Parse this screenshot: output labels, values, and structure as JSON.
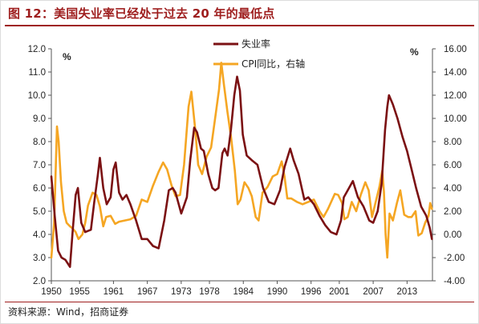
{
  "figure": {
    "title": "图 12：美国失业率已经处于过去 20 年的最低点",
    "source": "资料来源：Wind，招商证券"
  },
  "colors": {
    "unemployment": "#7b1113",
    "cpi": "#f5a623",
    "title": "#9e1e1e"
  },
  "chart_data": {
    "type": "line",
    "title": "",
    "left_unit": "%",
    "right_unit": "%",
    "xlim": [
      1950,
      2017.5
    ],
    "x_ticks": [
      1950,
      1955,
      1961,
      1967,
      1973,
      1978,
      1984,
      1990,
      1996,
      2001,
      2007,
      2013
    ],
    "y_left": {
      "lim": [
        2.0,
        12.0
      ],
      "ticks": [
        2.0,
        3.0,
        4.0,
        5.0,
        6.0,
        7.0,
        8.0,
        9.0,
        10.0,
        11.0,
        12.0
      ],
      "labels": [
        "2.0",
        "3.0",
        "4.0",
        "5.0",
        "6.0",
        "7.0",
        "8.0",
        "9.0",
        "10.0",
        "11.0",
        "12.0"
      ]
    },
    "y_right": {
      "lim": [
        -4.0,
        16.0
      ],
      "ticks": [
        -4,
        -2,
        0,
        2,
        4,
        6,
        8,
        10,
        12,
        14,
        16
      ],
      "labels": [
        "-4.00",
        "-2.00",
        "0.00",
        "2.00",
        "4.00",
        "6.00",
        "8.00",
        "10.00",
        "12.00",
        "14.00",
        "16.00"
      ]
    },
    "grid": false,
    "legend_position": "top-center",
    "series": [
      {
        "name": "失业率",
        "axis": "left",
        "points": [
          [
            1950,
            6.5
          ],
          [
            1950.6,
            4.8
          ],
          [
            1951.2,
            3.3
          ],
          [
            1951.8,
            3.0
          ],
          [
            1952.5,
            2.9
          ],
          [
            1953.3,
            2.6
          ],
          [
            1953.8,
            4.2
          ],
          [
            1954.3,
            5.7
          ],
          [
            1954.7,
            6.0
          ],
          [
            1955.3,
            4.5
          ],
          [
            1956,
            4.1
          ],
          [
            1957,
            4.2
          ],
          [
            1957.6,
            5.4
          ],
          [
            1958.2,
            6.5
          ],
          [
            1958.6,
            7.3
          ],
          [
            1959.2,
            6.0
          ],
          [
            1959.8,
            5.3
          ],
          [
            1960.5,
            5.6
          ],
          [
            1961,
            6.8
          ],
          [
            1961.4,
            7.1
          ],
          [
            1962,
            5.8
          ],
          [
            1962.6,
            5.5
          ],
          [
            1963.3,
            5.7
          ],
          [
            1964,
            5.3
          ],
          [
            1965,
            4.6
          ],
          [
            1966,
            3.8
          ],
          [
            1967,
            3.8
          ],
          [
            1968,
            3.5
          ],
          [
            1969,
            3.4
          ],
          [
            1970,
            4.6
          ],
          [
            1970.8,
            5.9
          ],
          [
            1971.5,
            6.0
          ],
          [
            1972,
            5.8
          ],
          [
            1973,
            4.9
          ],
          [
            1974,
            5.6
          ],
          [
            1974.6,
            7.2
          ],
          [
            1975.3,
            8.6
          ],
          [
            1975.8,
            8.4
          ],
          [
            1976.5,
            7.7
          ],
          [
            1977,
            7.6
          ],
          [
            1977.8,
            6.6
          ],
          [
            1978.5,
            6.0
          ],
          [
            1979,
            5.9
          ],
          [
            1979.6,
            6.0
          ],
          [
            1980.3,
            7.5
          ],
          [
            1980.7,
            7.7
          ],
          [
            1981.2,
            7.4
          ],
          [
            1981.8,
            8.5
          ],
          [
            1982.4,
            10.0
          ],
          [
            1982.9,
            10.8
          ],
          [
            1983.4,
            10.2
          ],
          [
            1983.9,
            8.3
          ],
          [
            1984.6,
            7.4
          ],
          [
            1985.5,
            7.2
          ],
          [
            1986.5,
            7.0
          ],
          [
            1987.5,
            6.0
          ],
          [
            1988.5,
            5.4
          ],
          [
            1989.5,
            5.3
          ],
          [
            1990.5,
            5.9
          ],
          [
            1991.3,
            6.9
          ],
          [
            1992.3,
            7.7
          ],
          [
            1992.9,
            7.2
          ],
          [
            1993.8,
            6.6
          ],
          [
            1994.8,
            5.5
          ],
          [
            1995.5,
            5.6
          ],
          [
            1996.5,
            5.3
          ],
          [
            1997.5,
            4.8
          ],
          [
            1998.5,
            4.4
          ],
          [
            1999.5,
            4.1
          ],
          [
            2000.5,
            4.0
          ],
          [
            2001.3,
            4.6
          ],
          [
            2001.8,
            5.6
          ],
          [
            2002.5,
            5.9
          ],
          [
            2003.4,
            6.3
          ],
          [
            2004.3,
            5.6
          ],
          [
            2005.3,
            5.2
          ],
          [
            2006.3,
            4.6
          ],
          [
            2007,
            4.5
          ],
          [
            2007.8,
            5.0
          ],
          [
            2008.5,
            6.2
          ],
          [
            2009.1,
            8.5
          ],
          [
            2009.5,
            9.5
          ],
          [
            2009.8,
            10.0
          ],
          [
            2010.5,
            9.6
          ],
          [
            2011.3,
            9.0
          ],
          [
            2012.2,
            8.2
          ],
          [
            2013,
            7.6
          ],
          [
            2013.8,
            6.8
          ],
          [
            2014.6,
            6.0
          ],
          [
            2015.5,
            5.2
          ],
          [
            2016.4,
            4.8
          ],
          [
            2017,
            4.3
          ],
          [
            2017.4,
            3.8
          ]
        ]
      },
      {
        "name": "CPI同比，右轴",
        "axis": "right",
        "points": [
          [
            1950,
            -2.0
          ],
          [
            1950.5,
            1.0
          ],
          [
            1950.8,
            6.0
          ],
          [
            1951,
            9.3
          ],
          [
            1951.3,
            8.0
          ],
          [
            1951.7,
            4.5
          ],
          [
            1952.2,
            2.0
          ],
          [
            1952.7,
            1.0
          ],
          [
            1953.3,
            0.7
          ],
          [
            1953.8,
            0.5
          ],
          [
            1954.3,
            0.2
          ],
          [
            1954.8,
            -0.4
          ],
          [
            1955.5,
            0.0
          ],
          [
            1956,
            1.0
          ],
          [
            1956.5,
            2.5
          ],
          [
            1957.3,
            3.6
          ],
          [
            1958,
            3.4
          ],
          [
            1958.6,
            2.4
          ],
          [
            1959.2,
            0.7
          ],
          [
            1959.7,
            1.5
          ],
          [
            1960.5,
            1.6
          ],
          [
            1961.3,
            0.9
          ],
          [
            1962,
            1.1
          ],
          [
            1963,
            1.2
          ],
          [
            1964,
            1.3
          ],
          [
            1965,
            1.6
          ],
          [
            1966,
            3.0
          ],
          [
            1967,
            2.8
          ],
          [
            1968,
            4.2
          ],
          [
            1969,
            5.4
          ],
          [
            1969.8,
            6.2
          ],
          [
            1970.5,
            5.6
          ],
          [
            1971.3,
            4.2
          ],
          [
            1972,
            3.3
          ],
          [
            1972.8,
            3.4
          ],
          [
            1973.5,
            6.0
          ],
          [
            1974.3,
            11.0
          ],
          [
            1974.8,
            12.3
          ],
          [
            1975.5,
            9.0
          ],
          [
            1976,
            6.0
          ],
          [
            1976.7,
            5.2
          ],
          [
            1977.5,
            6.7
          ],
          [
            1978.3,
            7.5
          ],
          [
            1979,
            10.0
          ],
          [
            1979.7,
            12.5
          ],
          [
            1980.1,
            14.8
          ],
          [
            1980.6,
            12.8
          ],
          [
            1981.2,
            10.5
          ],
          [
            1981.8,
            8.5
          ],
          [
            1982.5,
            5.5
          ],
          [
            1983,
            2.6
          ],
          [
            1983.5,
            3.0
          ],
          [
            1984.2,
            4.5
          ],
          [
            1984.9,
            4.0
          ],
          [
            1985.5,
            3.3
          ],
          [
            1986.2,
            1.5
          ],
          [
            1986.7,
            1.2
          ],
          [
            1987.4,
            3.6
          ],
          [
            1988.3,
            4.1
          ],
          [
            1989.2,
            5.0
          ],
          [
            1990,
            5.2
          ],
          [
            1990.8,
            6.3
          ],
          [
            1991.3,
            5.0
          ],
          [
            1991.8,
            3.1
          ],
          [
            1992.5,
            3.1
          ],
          [
            1993.5,
            2.8
          ],
          [
            1994.5,
            2.6
          ],
          [
            1995.5,
            2.8
          ],
          [
            1996.5,
            3.0
          ],
          [
            1997.5,
            2.0
          ],
          [
            1998.2,
            1.5
          ],
          [
            1999,
            2.2
          ],
          [
            2000.2,
            3.5
          ],
          [
            2000.8,
            3.4
          ],
          [
            2001.5,
            2.7
          ],
          [
            2001.9,
            1.3
          ],
          [
            2002.5,
            1.5
          ],
          [
            2003.2,
            2.8
          ],
          [
            2004,
            2.0
          ],
          [
            2004.8,
            3.4
          ],
          [
            2005.6,
            4.5
          ],
          [
            2006.2,
            3.8
          ],
          [
            2006.8,
            1.5
          ],
          [
            2007.4,
            2.7
          ],
          [
            2008.1,
            4.1
          ],
          [
            2008.6,
            5.5
          ],
          [
            2008.9,
            3.7
          ],
          [
            2009.2,
            0.0
          ],
          [
            2009.5,
            -2.0
          ],
          [
            2009.9,
            1.8
          ],
          [
            2010.5,
            1.2
          ],
          [
            2011.2,
            2.7
          ],
          [
            2011.8,
            3.8
          ],
          [
            2012.5,
            1.7
          ],
          [
            2013.2,
            1.5
          ],
          [
            2013.8,
            1.5
          ],
          [
            2014.5,
            2.0
          ],
          [
            2015,
            -0.1
          ],
          [
            2015.6,
            0.1
          ],
          [
            2016.2,
            1.0
          ],
          [
            2016.8,
            1.6
          ],
          [
            2017.1,
            2.7
          ],
          [
            2017.4,
            2.2
          ]
        ]
      }
    ]
  }
}
